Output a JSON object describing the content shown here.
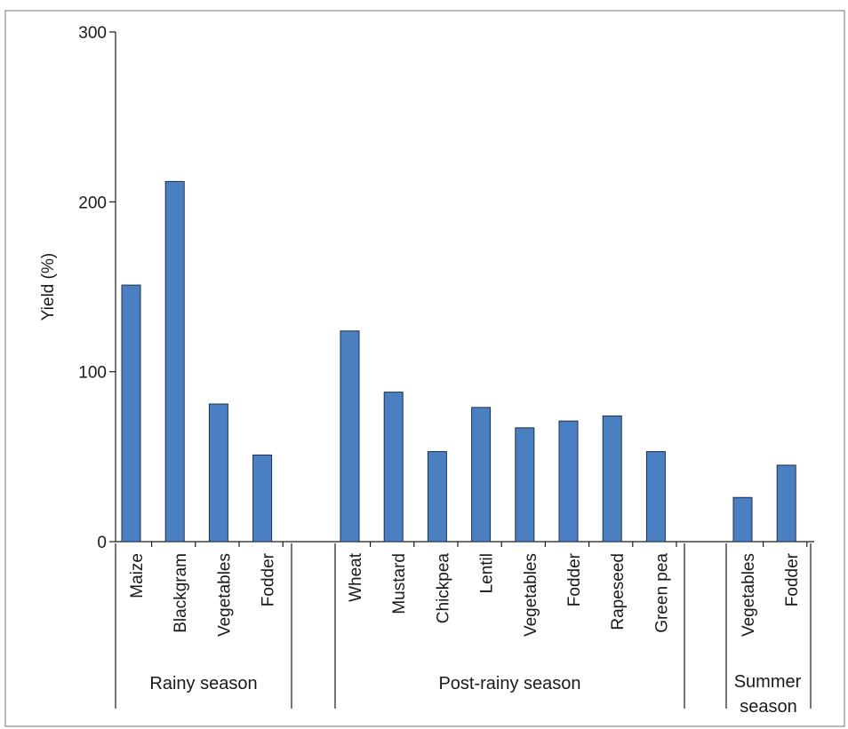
{
  "chart_data": {
    "type": "bar",
    "title": "",
    "xlabel": "",
    "ylabel": "Yield (%)",
    "ylim": [
      0,
      300
    ],
    "yticks": [
      0,
      100,
      200,
      300
    ],
    "grid": false,
    "bar_color": "#4a7fc1",
    "groups": [
      {
        "label": "Rainy season",
        "categories": [
          "Maize",
          "Blackgram",
          "Vegetables",
          "Fodder"
        ],
        "values": [
          151,
          212,
          81,
          51
        ]
      },
      {
        "label": "Post-rainy season",
        "categories": [
          "Wheat",
          "Mustard",
          "Chickpea",
          "Lentil",
          "Vegetables",
          "Fodder",
          "Rapeseed",
          "Green pea"
        ],
        "values": [
          124,
          88,
          53,
          79,
          67,
          71,
          74,
          53
        ]
      },
      {
        "label": "Summer season",
        "categories": [
          "Vegetables",
          "Fodder"
        ],
        "values": [
          26,
          45
        ]
      }
    ]
  }
}
